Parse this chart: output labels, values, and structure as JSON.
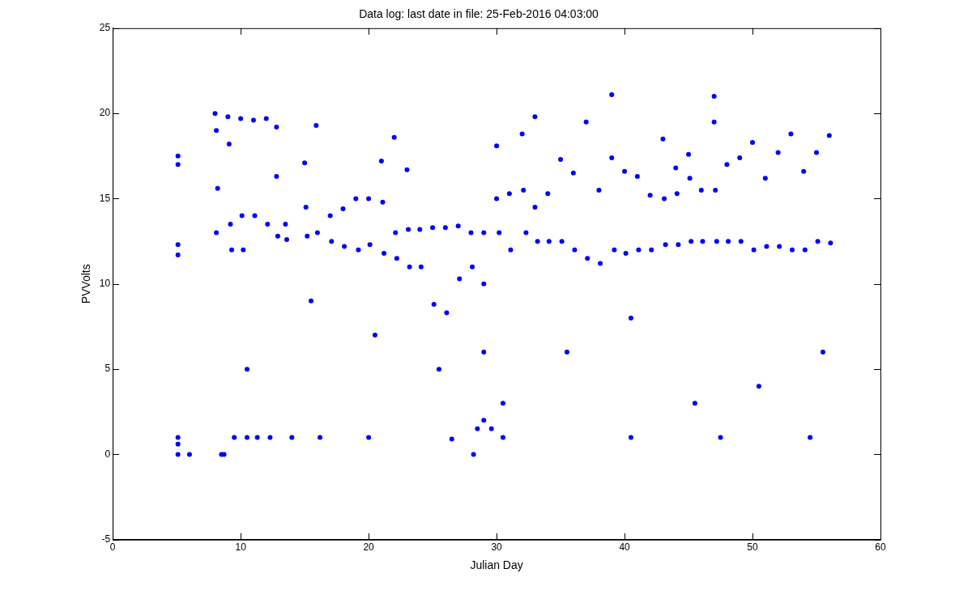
{
  "chart_data": {
    "type": "scatter",
    "title": "Data log: last date in file: 25-Feb-2016 04:03:00",
    "xlabel": "Julian Day",
    "ylabel": "PVVolts",
    "xlim": [
      0,
      60
    ],
    "xticks": [
      0,
      10,
      20,
      30,
      40,
      50,
      60
    ],
    "ylim": [
      -5,
      25
    ],
    "yticks": [
      -5,
      0,
      5,
      10,
      15,
      20,
      25
    ],
    "grid": false,
    "legend": false,
    "marker": "circle",
    "series": [
      {
        "color": "#0000ff",
        "x": [
          5.1,
          5.1,
          5.1,
          5.1,
          5.1,
          5.1,
          5.1,
          6,
          8,
          8.1,
          8.1,
          8.2,
          8.5,
          8.7,
          9,
          9.1,
          9.2,
          9.3,
          9.5,
          10,
          10.1,
          10.2,
          10.5,
          11,
          11.1,
          11.3,
          12,
          12.1,
          12.3,
          12.8,
          12.8,
          12.9,
          13.5,
          13.6,
          14,
          15,
          15.1,
          15.2,
          15.9,
          16,
          16.2,
          17,
          17.1,
          18,
          18.1,
          19,
          19.2,
          20,
          20.1,
          20,
          21,
          21.1,
          21.2,
          22,
          22.1,
          22.2,
          23,
          23.1,
          23.2,
          24,
          24.1,
          25,
          25.1,
          26,
          26.1,
          26.5,
          27,
          27.1,
          28,
          28.1,
          28.2,
          28.5,
          29,
          29,
          29,
          29,
          29.6,
          30,
          30,
          30.2,
          30.5,
          31,
          31.1,
          32,
          32.1,
          32.3,
          33,
          33,
          33.2,
          34,
          34.1,
          35,
          35.1,
          36,
          36.1,
          37,
          37.1,
          38,
          38.1,
          39,
          39,
          39.2,
          40,
          40.1,
          40.5,
          41,
          41.1,
          42,
          42.1,
          43,
          43.1,
          43.2,
          44,
          44.1,
          44.2,
          45,
          45.1,
          45.2,
          46,
          46.1,
          47,
          47,
          47.1,
          47.2,
          47.5,
          48,
          48.1,
          49,
          49.1,
          50,
          50.1,
          51,
          51.1,
          52,
          52.1,
          53,
          53.1,
          54,
          54.1,
          54.5,
          55,
          55.1,
          56,
          56.1,
          10.5,
          20.5,
          30.5,
          40.5,
          50.5,
          55.5,
          15.5,
          25.5,
          35.5,
          45.5
        ],
        "values": [
          17.5,
          17,
          12.3,
          11.7,
          1,
          0.6,
          0,
          0,
          20,
          19,
          13,
          15.6,
          0,
          0,
          19.8,
          18.2,
          13.5,
          12,
          1,
          19.7,
          14,
          12,
          1,
          19.6,
          14,
          1,
          19.7,
          13.5,
          1,
          19.2,
          16.3,
          12.8,
          13.5,
          12.6,
          1,
          17.1,
          14.5,
          12.8,
          19.3,
          13,
          1,
          14,
          12.5,
          14.4,
          12.2,
          15,
          12,
          15,
          12.3,
          1,
          17.2,
          14.8,
          11.8,
          18.6,
          13,
          11.5,
          16.7,
          13.2,
          11,
          13.2,
          11,
          13.3,
          8.8,
          13.3,
          8.3,
          0.9,
          13.4,
          10.3,
          13,
          11,
          0,
          1.5,
          13,
          10,
          6,
          2,
          1.5,
          18.1,
          15,
          13,
          1,
          15.3,
          12,
          18.8,
          15.5,
          13,
          19.8,
          14.5,
          12.5,
          15.3,
          12.5,
          17.3,
          12.5,
          16.5,
          12,
          19.5,
          11.5,
          15.5,
          11.2,
          21.1,
          17.4,
          12,
          16.6,
          11.8,
          1,
          16.3,
          12,
          15.2,
          12,
          18.5,
          15,
          12.3,
          16.8,
          15.3,
          12.3,
          17.6,
          16.2,
          12.5,
          15.5,
          12.5,
          21,
          19.5,
          15.5,
          12.5,
          1,
          17,
          12.5,
          17.4,
          12.5,
          18.3,
          12,
          16.2,
          12.2,
          17.7,
          12.2,
          18.8,
          12,
          16.6,
          12,
          1,
          17.7,
          12.5,
          18.7,
          12.4,
          5,
          7,
          3,
          8,
          4,
          6,
          9,
          5,
          6,
          3
        ]
      }
    ]
  }
}
